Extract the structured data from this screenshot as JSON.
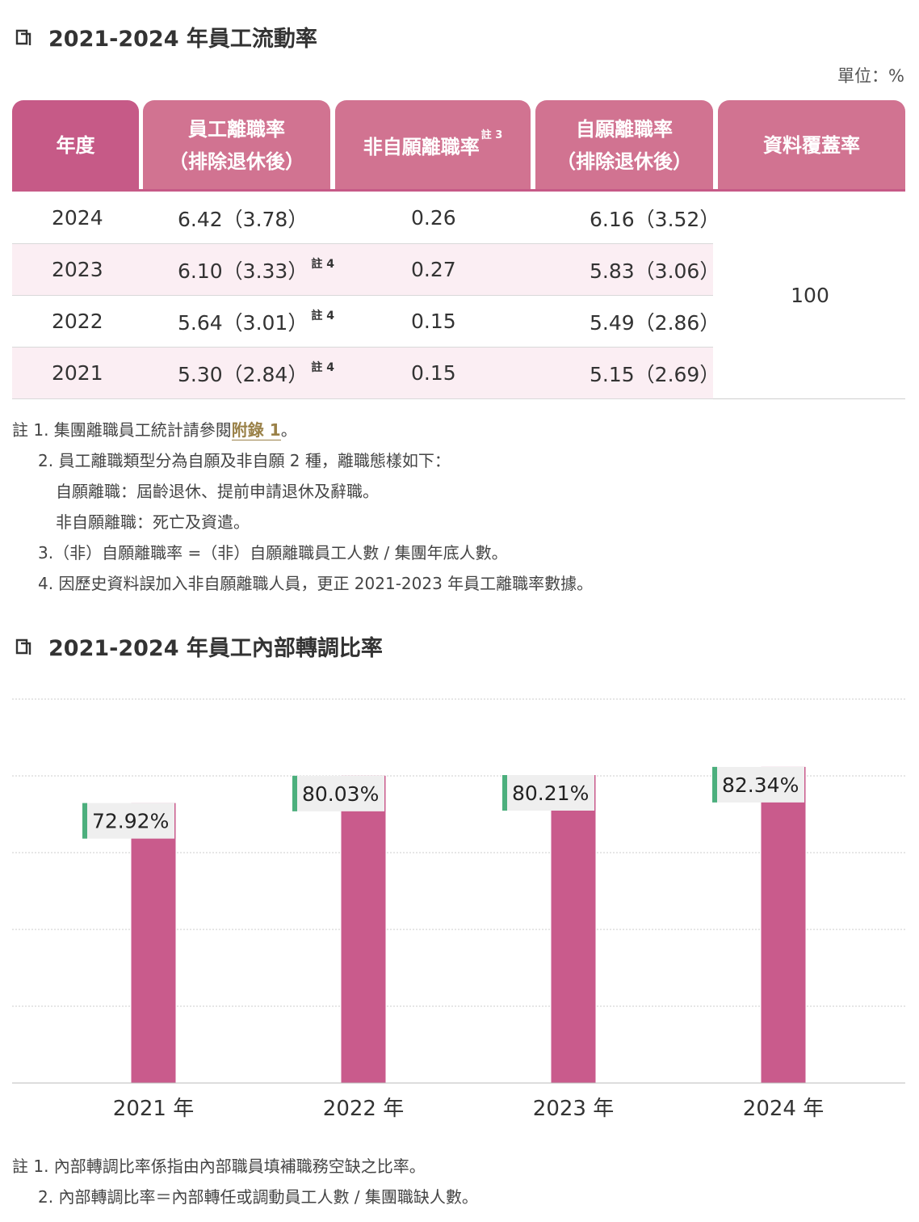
{
  "section1": {
    "title": "2021-2024 年員工流動率",
    "unit": "單位：%",
    "headers": [
      {
        "line1": "年度",
        "line2": "",
        "sup": ""
      },
      {
        "line1": "員工離職率",
        "line2": "（排除退休後）",
        "sup": ""
      },
      {
        "line1": "非自願離職率",
        "line2": "",
        "sup": "註 3"
      },
      {
        "line1": "自願離職率",
        "line2": "（排除退休後）",
        "sup": ""
      },
      {
        "line1": "資料覆蓋率",
        "line2": "",
        "sup": ""
      }
    ],
    "rows": [
      {
        "year": "2024",
        "turnover": "6.42（3.78）",
        "turnover_note": "",
        "involuntary": "0.26",
        "voluntary": "6.16（3.52）"
      },
      {
        "year": "2023",
        "turnover": "6.10（3.33）",
        "turnover_note": "註 4",
        "involuntary": "0.27",
        "voluntary": "5.83（3.06）"
      },
      {
        "year": "2022",
        "turnover": "5.64（3.01）",
        "turnover_note": "註 4",
        "involuntary": "0.15",
        "voluntary": "5.49（2.86）"
      },
      {
        "year": "2021",
        "turnover": "5.30（2.84）",
        "turnover_note": "註 4",
        "involuntary": "0.15",
        "voluntary": "5.15（2.69）"
      }
    ],
    "coverage": "100",
    "notes": {
      "n1_prefix": "註 1. 集團離職員工統計請參閱",
      "n1_link": "附錄 1",
      "n1_suffix": "。",
      "n2": "2. 員工離職類型分為自願及非自願 2 種，離職態樣如下：",
      "n2a": "自願離職：屆齡退休、提前申請退休及辭職。",
      "n2b": "非自願離職：死亡及資遣。",
      "n3": "3.（非）自願離職率 =（非）自願離職員工人數 / 集團年底人數。",
      "n4": "4. 因歷史資料誤加入非自願離職人員，更正 2021-2023 年員工離職率數據。"
    }
  },
  "section2": {
    "title": "2021-2024 年員工內部轉調比率",
    "notes": {
      "n1": "註 1. 內部轉調比率係指由內部職員填補職務空缺之比率。",
      "n2": "2. 內部轉調比率＝內部轉任或調動員工人數 / 集團職缺人數。"
    }
  },
  "chart_data": {
    "type": "bar",
    "categories": [
      "2021 年",
      "2022 年",
      "2023 年",
      "2024 年"
    ],
    "values": [
      72.92,
      80.03,
      80.21,
      82.34
    ],
    "labels": [
      "72.92%",
      "80.03%",
      "80.21%",
      "82.34%"
    ],
    "ylim": [
      0,
      100
    ],
    "grid": true,
    "colors": {
      "bar": "#c95b8c",
      "label_bg": "#efefef",
      "label_accent": "#4caf7d",
      "grid": "#cccccc"
    }
  },
  "icons": {
    "title": "book-icon"
  }
}
